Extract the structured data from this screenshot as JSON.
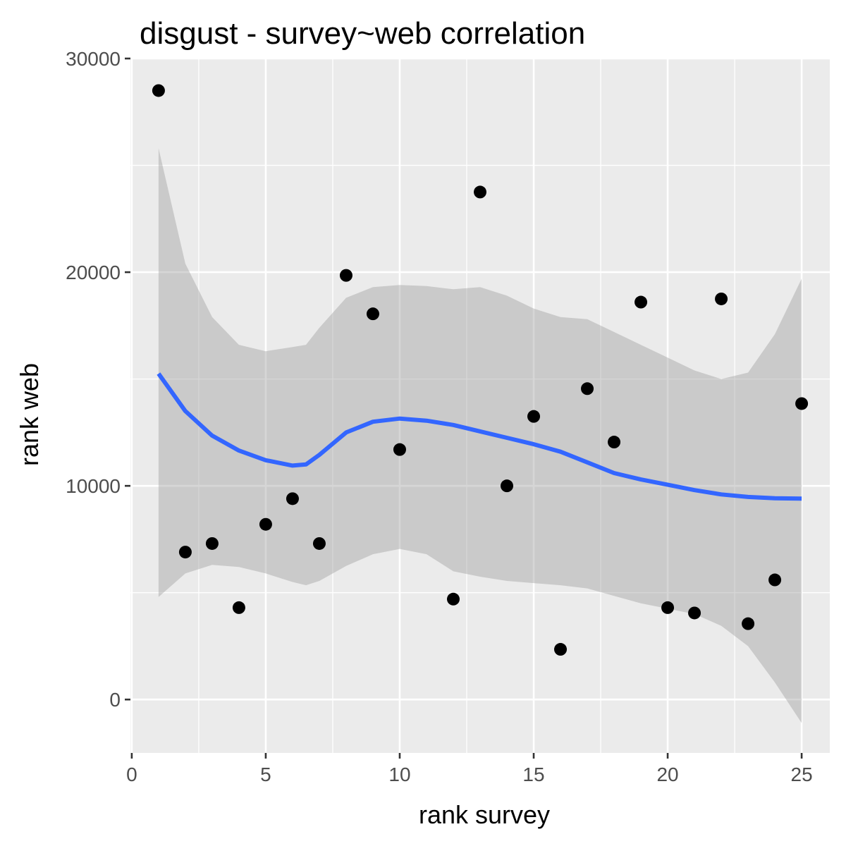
{
  "chart_data": {
    "type": "scatter",
    "title": "disgust - survey~web correlation",
    "xlabel": "rank survey",
    "ylabel": "rank web",
    "xlim": [
      -0.05,
      26.05
    ],
    "ylim": [
      -2500,
      30000
    ],
    "x_ticks": [
      0,
      5,
      10,
      15,
      20,
      25
    ],
    "y_ticks": [
      0,
      10000,
      20000,
      30000
    ],
    "x_tick_labels": [
      "0",
      "5",
      "10",
      "15",
      "20",
      "25"
    ],
    "y_tick_labels": [
      "0",
      "10000",
      "20000",
      "30000"
    ],
    "x_minor_ticks": [
      2.5,
      7.5,
      12.5,
      17.5,
      22.5
    ],
    "y_minor_ticks": [
      5000,
      15000,
      25000
    ],
    "grid": true,
    "legend": "none",
    "points": [
      {
        "x": 1,
        "y": 28500
      },
      {
        "x": 2,
        "y": 6900
      },
      {
        "x": 3,
        "y": 7300
      },
      {
        "x": 4,
        "y": 4300
      },
      {
        "x": 5,
        "y": 8200
      },
      {
        "x": 6,
        "y": 9400
      },
      {
        "x": 7,
        "y": 7300
      },
      {
        "x": 8,
        "y": 19850
      },
      {
        "x": 9,
        "y": 18050
      },
      {
        "x": 10,
        "y": 11700
      },
      {
        "x": 12,
        "y": 4700
      },
      {
        "x": 13,
        "y": 23750
      },
      {
        "x": 14,
        "y": 10000
      },
      {
        "x": 15,
        "y": 13250
      },
      {
        "x": 16,
        "y": 2350
      },
      {
        "x": 17,
        "y": 14550
      },
      {
        "x": 18,
        "y": 12050
      },
      {
        "x": 19,
        "y": 18600
      },
      {
        "x": 20,
        "y": 4300
      },
      {
        "x": 21,
        "y": 4050
      },
      {
        "x": 22,
        "y": 18750
      },
      {
        "x": 23,
        "y": 3550
      },
      {
        "x": 24,
        "y": 5600
      },
      {
        "x": 25,
        "y": 13850
      }
    ],
    "smooth": {
      "method": "loess",
      "x": [
        1,
        2,
        3,
        4,
        5,
        6,
        6.5,
        7,
        8,
        9,
        10,
        11,
        12,
        13,
        14,
        15,
        16,
        17,
        18,
        19,
        20,
        21,
        22,
        23,
        24,
        25
      ],
      "y": [
        15250,
        13500,
        12350,
        11650,
        11200,
        10950,
        11000,
        11450,
        12500,
        13000,
        13150,
        13050,
        12850,
        12550,
        12250,
        11950,
        11600,
        11100,
        10600,
        10300,
        10050,
        9800,
        9600,
        9480,
        9420,
        9400
      ],
      "lower": [
        4800,
        5900,
        6300,
        6200,
        5900,
        5500,
        5350,
        5550,
        6250,
        6800,
        7050,
        6800,
        6000,
        5750,
        5550,
        5450,
        5350,
        5200,
        4850,
        4500,
        4250,
        4000,
        3450,
        2500,
        800,
        -1100
      ],
      "upper": [
        25800,
        20400,
        17900,
        16600,
        16300,
        16500,
        16600,
        17400,
        18800,
        19300,
        19400,
        19350,
        19200,
        19300,
        18900,
        18300,
        17900,
        17800,
        17200,
        16600,
        16000,
        15400,
        15000,
        15300,
        17100,
        19700
      ],
      "line_color": "#3366FF",
      "band_color": "#999999"
    },
    "point_color": "#000000",
    "panel_background": "#EBEBEB",
    "grid_color": "#FFFFFF"
  }
}
